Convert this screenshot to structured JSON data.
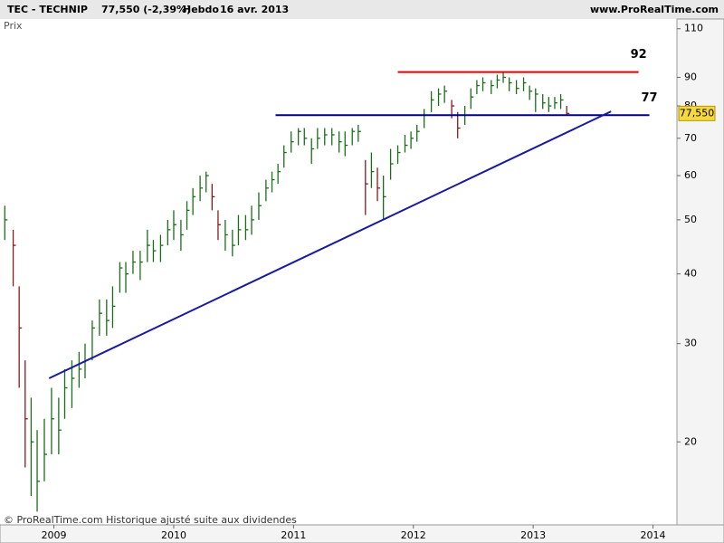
{
  "chart_data": {
    "type": "hlc",
    "ticker": "TEC - TECHNIP",
    "last": "77,550 (-2,39%)",
    "period": "Hebdo",
    "date": "16 avr. 2013",
    "site": "www.ProRealTime.com",
    "ylabel": "Prix",
    "footer": "© ProRealTime.com Historique ajusté suite aux dividendes",
    "log_scale": true,
    "color": "#1a6e1a",
    "down_color": "#8b1a1a",
    "x": [
      2008.59,
      2008.66,
      2008.71,
      2008.76,
      2008.81,
      2008.86,
      2008.92,
      2008.98,
      2009.04,
      2009.09,
      2009.15,
      2009.21,
      2009.26,
      2009.32,
      2009.38,
      2009.44,
      2009.49,
      2009.55,
      2009.6,
      2009.66,
      2009.72,
      2009.78,
      2009.83,
      2009.89,
      2009.95,
      2010.0,
      2010.06,
      2010.11,
      2010.16,
      2010.22,
      2010.27,
      2010.32,
      2010.37,
      2010.43,
      2010.49,
      2010.54,
      2010.6,
      2010.65,
      2010.71,
      2010.77,
      2010.82,
      2010.87,
      2010.92,
      2010.98,
      2011.04,
      2011.09,
      2011.15,
      2011.2,
      2011.26,
      2011.32,
      2011.38,
      2011.43,
      2011.49,
      2011.54,
      2011.6,
      2011.65,
      2011.7,
      2011.75,
      2011.81,
      2011.87,
      2011.93,
      2011.98,
      2012.03,
      2012.09,
      2012.15,
      2012.21,
      2012.26,
      2012.32,
      2012.37,
      2012.43,
      2012.48,
      2012.53,
      2012.58,
      2012.65,
      2012.7,
      2012.75,
      2012.8,
      2012.86,
      2012.92,
      2012.97,
      2013.02,
      2013.08,
      2013.13,
      2013.18,
      2013.23,
      2013.28
    ],
    "high": [
      53,
      48,
      38,
      28,
      24,
      21,
      22,
      25,
      24,
      27,
      28,
      29,
      30,
      33,
      36,
      36,
      38,
      42,
      42,
      44,
      44,
      48,
      46,
      47,
      50,
      52,
      50,
      54,
      57,
      60,
      61,
      58,
      52,
      50,
      48,
      51,
      51,
      53,
      56,
      59,
      61,
      63,
      68,
      72,
      73,
      73,
      70,
      73,
      73,
      73,
      72,
      72,
      73,
      74,
      64,
      66,
      62,
      60,
      67,
      68,
      71,
      72,
      74,
      79,
      85,
      86,
      87,
      82,
      78,
      80,
      86,
      89,
      90,
      89,
      91,
      92,
      90,
      89,
      90,
      87,
      86,
      84,
      83,
      83,
      84,
      80
    ],
    "low": [
      46,
      38,
      25,
      18,
      16,
      15,
      17,
      19,
      19,
      22,
      23,
      25,
      26,
      28,
      31,
      31,
      32,
      37,
      37,
      40,
      39,
      42,
      42,
      42,
      45,
      46,
      44,
      48,
      51,
      54,
      56,
      52,
      46,
      44,
      43,
      45,
      46,
      47,
      50,
      54,
      56,
      58,
      62,
      66,
      68,
      68,
      63,
      67,
      68,
      68,
      66,
      65,
      68,
      69,
      51,
      57,
      54,
      50,
      59,
      63,
      66,
      67,
      69,
      73,
      78,
      80,
      81,
      76,
      70,
      74,
      79,
      84,
      85,
      84,
      86,
      88,
      85,
      84,
      85,
      82,
      78,
      79,
      78,
      79,
      79,
      77
    ],
    "close": [
      50,
      45,
      32,
      22,
      20,
      17,
      19,
      22,
      21,
      25,
      26,
      27,
      28,
      32,
      34,
      33,
      35,
      41,
      40,
      42,
      42,
      45,
      44,
      45,
      48,
      49,
      47,
      52,
      55,
      57,
      60,
      55,
      49,
      47,
      45,
      48,
      48,
      50,
      53,
      57,
      59,
      61,
      66,
      69,
      72,
      70,
      67,
      70,
      71,
      71,
      69,
      68,
      72,
      72,
      58,
      61,
      57,
      55,
      63,
      66,
      68,
      70,
      72,
      77,
      82,
      84,
      85,
      80,
      73,
      77,
      83,
      87,
      88,
      87,
      89,
      90,
      88,
      86,
      88,
      85,
      84,
      81,
      80,
      81,
      82,
      77.55
    ],
    "last_price": 77.55,
    "last_price_label": "77,550",
    "lines": [
      {
        "x": [
          2011.87,
          2013.88
        ],
        "y": [
          92,
          92
        ],
        "color": "#e00000",
        "label": "92"
      },
      {
        "x": [
          2010.85,
          2013.97
        ],
        "y": [
          77,
          77
        ],
        "color": "#000080",
        "label": "77"
      },
      {
        "x": [
          2008.96,
          2013.65
        ],
        "y": [
          26,
          78.2
        ],
        "color": "#1a1aa0"
      }
    ],
    "xlim": [
      2008.55,
      2014.2
    ],
    "xticks": [
      2009,
      2010,
      2011,
      2012,
      2013,
      2014
    ],
    "ylim": [
      14.2,
      114.5
    ],
    "yticks": [
      110,
      90,
      80,
      70,
      60,
      50,
      40,
      30,
      20
    ]
  }
}
